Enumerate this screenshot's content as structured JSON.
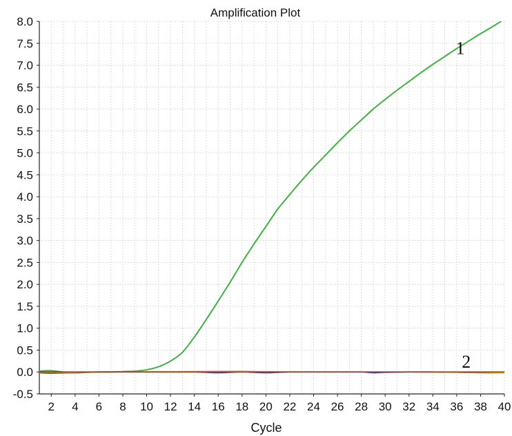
{
  "chart_data": {
    "type": "line",
    "title": "Amplification Plot",
    "xlabel": "Cycle",
    "ylabel": "",
    "xlim": [
      1,
      40
    ],
    "ylim": [
      -0.5,
      8.0
    ],
    "xticks": [
      2,
      4,
      6,
      8,
      10,
      12,
      14,
      16,
      18,
      20,
      22,
      24,
      26,
      28,
      30,
      32,
      34,
      36,
      38,
      40
    ],
    "yticks": [
      "-0.5",
      "0.0",
      "0.5",
      "1.0",
      "1.5",
      "2.0",
      "2.5",
      "3.0",
      "3.5",
      "4.0",
      "4.5",
      "5.0",
      "5.5",
      "6.0",
      "6.5",
      "7.0",
      "7.5",
      "8.0"
    ],
    "grid": true,
    "annotations": [
      {
        "text": "1",
        "x": 36.3,
        "y": 7.25
      },
      {
        "text": "2",
        "x": 36.8,
        "y": 0.1
      }
    ],
    "series": [
      {
        "color": "#3cb43c",
        "x": [
          1,
          2,
          3,
          4,
          5,
          6,
          7,
          8,
          9,
          10,
          11,
          12,
          13,
          14,
          15,
          16,
          17,
          18,
          19,
          20,
          21,
          22,
          23,
          24,
          25,
          26,
          27,
          28,
          29,
          30,
          31,
          32,
          33,
          34,
          35,
          36,
          37,
          38,
          39,
          40
        ],
        "values": [
          0.02,
          0.03,
          0.0,
          -0.02,
          -0.01,
          0.0,
          0.0,
          0.01,
          0.02,
          0.05,
          0.12,
          0.25,
          0.45,
          0.8,
          1.2,
          1.62,
          2.05,
          2.5,
          2.92,
          3.32,
          3.72,
          4.05,
          4.37,
          4.67,
          4.95,
          5.23,
          5.5,
          5.75,
          6.0,
          6.22,
          6.43,
          6.63,
          6.83,
          7.02,
          7.2,
          7.38,
          7.55,
          7.72,
          7.88,
          8.05
        ]
      },
      {
        "color": "#3050c8",
        "x": [
          1,
          2,
          4,
          6,
          8,
          10,
          12,
          14,
          16,
          18,
          20,
          22,
          24,
          26,
          28,
          29,
          30,
          32,
          34,
          36,
          38,
          40
        ],
        "values": [
          -0.02,
          -0.03,
          -0.02,
          0.0,
          0.0,
          0.0,
          0.0,
          0.0,
          -0.02,
          0.0,
          -0.02,
          0.0,
          0.0,
          0.0,
          0.0,
          -0.02,
          -0.01,
          0.0,
          0.0,
          -0.01,
          -0.02,
          -0.02
        ]
      },
      {
        "color": "#e0c020",
        "x": [
          1,
          4,
          8,
          12,
          16,
          18,
          20,
          24,
          28,
          32,
          36,
          38,
          40
        ],
        "values": [
          -0.01,
          -0.01,
          0.0,
          0.01,
          0.02,
          0.02,
          0.01,
          0.0,
          0.0,
          0.0,
          -0.01,
          -0.01,
          -0.02
        ]
      },
      {
        "color": "#c02020",
        "x": [
          1,
          4,
          8,
          12,
          16,
          20,
          24,
          28,
          32,
          36,
          40
        ],
        "values": [
          0.0,
          0.0,
          0.0,
          0.0,
          0.0,
          0.0,
          0.0,
          0.0,
          0.0,
          0.0,
          0.0
        ]
      }
    ]
  }
}
